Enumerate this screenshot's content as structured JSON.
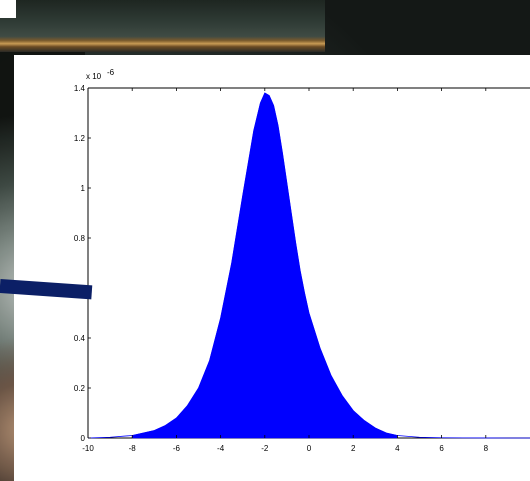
{
  "chart_data": {
    "type": "area",
    "exponent_label": "x 10",
    "exponent_power": "-6",
    "xlim": [
      -10,
      10
    ],
    "ylim": [
      0,
      1.4
    ],
    "x_ticks": [
      -10,
      -8,
      -6,
      -4,
      -2,
      0,
      2,
      4,
      6,
      8
    ],
    "y_ticks": [
      0,
      0.2,
      0.4,
      0.6,
      0.8,
      1,
      1.2,
      1.4
    ],
    "series": [
      {
        "x": [
          -10,
          -9,
          -8,
          -7.5,
          -7,
          -6.5,
          -6,
          -5.5,
          -5,
          -4.5,
          -4,
          -3.5,
          -3,
          -2.5,
          -2.2,
          -2,
          -1.8,
          -1.6,
          -1.4,
          -1.2,
          -1,
          -0.8,
          -0.6,
          -0.4,
          -0.2,
          0,
          0.5,
          1,
          1.5,
          2,
          2.5,
          3,
          3.5,
          4,
          5,
          6,
          7,
          8,
          9,
          10
        ],
        "y": [
          0,
          0.003,
          0.01,
          0.02,
          0.03,
          0.05,
          0.08,
          0.13,
          0.2,
          0.31,
          0.48,
          0.7,
          0.97,
          1.23,
          1.34,
          1.38,
          1.37,
          1.33,
          1.25,
          1.14,
          1.02,
          0.9,
          0.78,
          0.67,
          0.58,
          0.5,
          0.36,
          0.25,
          0.17,
          0.11,
          0.07,
          0.04,
          0.02,
          0.01,
          0.003,
          0.001,
          0.0005,
          0.0002,
          0.0001,
          0
        ],
        "color": "#0000ff"
      }
    ],
    "fill_range": [
      -8,
      4
    ],
    "fill_color": "#0000ff",
    "grid": false
  }
}
